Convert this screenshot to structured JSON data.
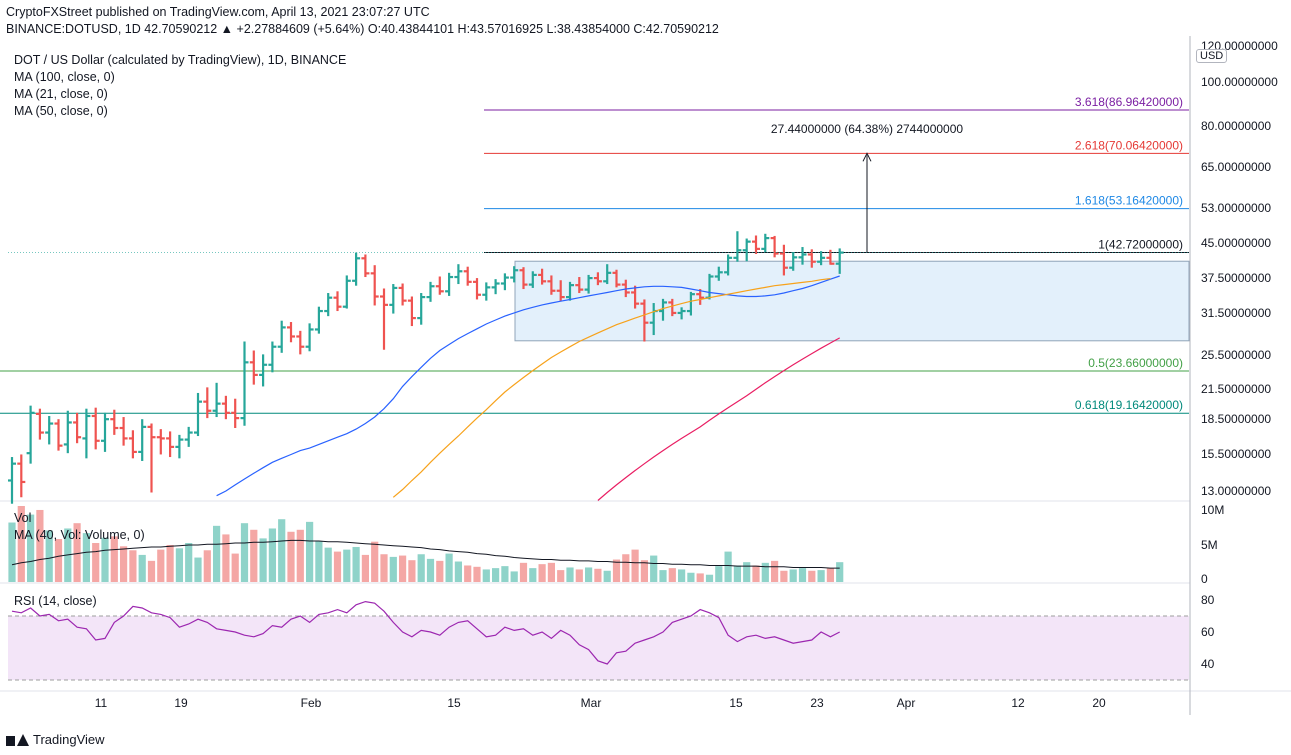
{
  "header": {
    "line1": "CryptoFXStreet published on TradingView.com, April 13, 2021 23:07:27 UTC",
    "line2": "BINANCE:DOTUSD, 1D  42.70590212  ▲ +2.27884609 (+5.64%) O:40.43844101 H:43.57016925 L:38.43854000 C:42.70590212"
  },
  "legend": {
    "title": "DOT / US Dollar (calculated by TradingView), 1D, BINANCE",
    "ma100": "MA (100, close, 0)",
    "ma21": "MA (21, close, 0)",
    "ma50": "MA (50, close, 0)",
    "vol": "Vol",
    "vol_ma": "MA (40, Vol: Volume, 0)",
    "rsi": "RSI (14, close)"
  },
  "currency_badge": "USD",
  "footer": {
    "brand": "TradingView"
  },
  "colors": {
    "up": "#26a69a",
    "down": "#ef5350",
    "ma21": "#2962ff",
    "ma50": "#f7a21b",
    "ma100": "#e91e63",
    "rsi": "#9c27b0",
    "band": "#e3f0fb"
  },
  "chart_data": {
    "type": "ohlc",
    "price_axis": {
      "scale": "log",
      "ticks": [
        "120.00000000",
        "100.00000000",
        "80.00000000",
        "65.00000000",
        "53.00000000",
        "45.00000000",
        "37.50000000",
        "31.50000000",
        "25.50000000",
        "21.50000000",
        "18.50000000",
        "15.50000000",
        "13.00000000"
      ]
    },
    "volume_axis": {
      "ticks": [
        "10M",
        "5M",
        "0"
      ]
    },
    "rsi_axis": {
      "ticks": [
        "80",
        "60",
        "40"
      ],
      "bands": [
        70,
        30
      ]
    },
    "time_axis": {
      "ticks": [
        "11",
        "19",
        "Feb",
        "15",
        "Mar",
        "15",
        "23",
        "Apr",
        "12",
        "20"
      ]
    },
    "levels": [
      {
        "label": "3.618(86.96420000)",
        "value": 86.9642,
        "color": "#7b1fa2"
      },
      {
        "label": "2.618(70.06420000)",
        "value": 70.0642,
        "color": "#e53935"
      },
      {
        "label": "1.618(53.16420000)",
        "value": 53.1642,
        "color": "#1e88e5"
      },
      {
        "label": "1(42.72000000)",
        "value": 42.72,
        "color": "#131722"
      },
      {
        "label": "0.5(23.66000000)",
        "value": 23.66,
        "color": "#43a047"
      },
      {
        "label": "0.618(19.16420000)",
        "value": 19.1642,
        "color": "#00897b"
      }
    ],
    "measure_label": "27.44000000 (64.38%) 2744000000",
    "range_box": {
      "top": 40.9,
      "bottom": 27.5
    },
    "bars": [
      {
        "o": 13.7,
        "h": 15.4,
        "l": 12.2,
        "c": 14.9
      },
      {
        "o": 14.9,
        "h": 15.6,
        "l": 12.6,
        "c": 13.6
      },
      {
        "o": 15.7,
        "h": 19.9,
        "l": 14.9,
        "c": 19.2
      },
      {
        "o": 19.1,
        "h": 19.6,
        "l": 16.8,
        "c": 17.4
      },
      {
        "o": 17.4,
        "h": 18.9,
        "l": 16.4,
        "c": 18.2
      },
      {
        "o": 18.2,
        "h": 18.6,
        "l": 15.9,
        "c": 16.3
      },
      {
        "o": 16.4,
        "h": 19.4,
        "l": 15.7,
        "c": 18.3
      },
      {
        "o": 18.3,
        "h": 19.2,
        "l": 16.5,
        "c": 17.0
      },
      {
        "o": 16.9,
        "h": 19.6,
        "l": 15.3,
        "c": 18.9
      },
      {
        "o": 18.9,
        "h": 19.7,
        "l": 16.0,
        "c": 16.7
      },
      {
        "o": 16.7,
        "h": 19.2,
        "l": 15.8,
        "c": 18.6
      },
      {
        "o": 18.6,
        "h": 19.5,
        "l": 17.2,
        "c": 17.8
      },
      {
        "o": 17.8,
        "h": 18.8,
        "l": 16.3,
        "c": 16.9
      },
      {
        "o": 16.9,
        "h": 17.6,
        "l": 15.3,
        "c": 15.8
      },
      {
        "o": 15.8,
        "h": 18.6,
        "l": 15.1,
        "c": 17.9
      },
      {
        "o": 17.9,
        "h": 18.2,
        "l": 12.9,
        "c": 17.0
      },
      {
        "o": 17.0,
        "h": 17.7,
        "l": 15.6,
        "c": 16.9
      },
      {
        "o": 16.9,
        "h": 17.5,
        "l": 15.4,
        "c": 16.2
      },
      {
        "o": 16.2,
        "h": 17.2,
        "l": 15.3,
        "c": 16.8
      },
      {
        "o": 16.8,
        "h": 17.9,
        "l": 16.2,
        "c": 17.4
      },
      {
        "o": 17.4,
        "h": 21.2,
        "l": 17.1,
        "c": 20.3
      },
      {
        "o": 20.3,
        "h": 21.8,
        "l": 18.7,
        "c": 19.4
      },
      {
        "o": 19.4,
        "h": 22.3,
        "l": 18.8,
        "c": 20.1
      },
      {
        "o": 20.1,
        "h": 20.9,
        "l": 18.6,
        "c": 19.2
      },
      {
        "o": 19.2,
        "h": 20.6,
        "l": 17.8,
        "c": 18.7
      },
      {
        "o": 18.7,
        "h": 27.4,
        "l": 18.0,
        "c": 24.7
      },
      {
        "o": 24.7,
        "h": 26.2,
        "l": 22.1,
        "c": 23.2
      },
      {
        "o": 23.2,
        "h": 25.7,
        "l": 21.9,
        "c": 24.4
      },
      {
        "o": 24.4,
        "h": 27.4,
        "l": 23.5,
        "c": 26.7
      },
      {
        "o": 26.7,
        "h": 30.4,
        "l": 25.9,
        "c": 29.4
      },
      {
        "o": 29.4,
        "h": 30.2,
        "l": 27.3,
        "c": 28.1
      },
      {
        "o": 28.1,
        "h": 28.9,
        "l": 25.7,
        "c": 26.7
      },
      {
        "o": 26.7,
        "h": 30.0,
        "l": 26.1,
        "c": 29.1
      },
      {
        "o": 29.1,
        "h": 32.6,
        "l": 28.5,
        "c": 31.9
      },
      {
        "o": 31.9,
        "h": 34.9,
        "l": 31.1,
        "c": 34.1
      },
      {
        "o": 34.1,
        "h": 35.2,
        "l": 31.9,
        "c": 32.6
      },
      {
        "o": 32.6,
        "h": 38.1,
        "l": 32.3,
        "c": 37.1
      },
      {
        "o": 37.1,
        "h": 42.7,
        "l": 36.2,
        "c": 41.5
      },
      {
        "o": 41.5,
        "h": 42.3,
        "l": 37.8,
        "c": 38.5
      },
      {
        "o": 38.5,
        "h": 40.1,
        "l": 32.8,
        "c": 34.3
      },
      {
        "o": 34.3,
        "h": 35.7,
        "l": 26.3,
        "c": 32.9
      },
      {
        "o": 32.9,
        "h": 36.5,
        "l": 31.5,
        "c": 35.8
      },
      {
        "o": 35.8,
        "h": 36.6,
        "l": 32.8,
        "c": 33.6
      },
      {
        "o": 33.6,
        "h": 34.3,
        "l": 29.6,
        "c": 30.8
      },
      {
        "o": 30.8,
        "h": 34.9,
        "l": 29.8,
        "c": 34.2
      },
      {
        "o": 34.2,
        "h": 36.9,
        "l": 33.4,
        "c": 36.1
      },
      {
        "o": 36.1,
        "h": 37.9,
        "l": 34.6,
        "c": 35.2
      },
      {
        "o": 35.2,
        "h": 38.6,
        "l": 34.4,
        "c": 37.8
      },
      {
        "o": 37.8,
        "h": 40.3,
        "l": 36.5,
        "c": 38.9
      },
      {
        "o": 38.9,
        "h": 39.8,
        "l": 36.2,
        "c": 36.9
      },
      {
        "o": 36.9,
        "h": 37.6,
        "l": 33.8,
        "c": 34.6
      },
      {
        "o": 34.6,
        "h": 36.8,
        "l": 33.6,
        "c": 35.9
      },
      {
        "o": 35.9,
        "h": 37.4,
        "l": 34.7,
        "c": 36.6
      },
      {
        "o": 36.6,
        "h": 38.5,
        "l": 35.4,
        "c": 37.7
      },
      {
        "o": 37.7,
        "h": 39.9,
        "l": 36.8,
        "c": 39.1
      },
      {
        "o": 39.1,
        "h": 39.7,
        "l": 35.6,
        "c": 36.4
      },
      {
        "o": 36.4,
        "h": 38.9,
        "l": 35.8,
        "c": 38.2
      },
      {
        "o": 38.2,
        "h": 39.4,
        "l": 36.4,
        "c": 37.0
      },
      {
        "o": 37.0,
        "h": 38.1,
        "l": 34.6,
        "c": 35.3
      },
      {
        "o": 35.3,
        "h": 37.2,
        "l": 33.5,
        "c": 34.2
      },
      {
        "o": 34.2,
        "h": 36.9,
        "l": 33.6,
        "c": 36.3
      },
      {
        "o": 36.3,
        "h": 37.8,
        "l": 34.9,
        "c": 35.5
      },
      {
        "o": 35.5,
        "h": 38.2,
        "l": 34.8,
        "c": 37.6
      },
      {
        "o": 37.6,
        "h": 38.7,
        "l": 36.3,
        "c": 37.0
      },
      {
        "o": 37.0,
        "h": 40.3,
        "l": 36.5,
        "c": 38.6
      },
      {
        "o": 38.6,
        "h": 39.2,
        "l": 35.9,
        "c": 36.4
      },
      {
        "o": 36.4,
        "h": 37.3,
        "l": 34.2,
        "c": 35.0
      },
      {
        "o": 35.0,
        "h": 36.2,
        "l": 32.3,
        "c": 33.1
      },
      {
        "o": 33.1,
        "h": 33.8,
        "l": 27.4,
        "c": 30.1
      },
      {
        "o": 30.1,
        "h": 33.2,
        "l": 28.3,
        "c": 31.9
      },
      {
        "o": 31.9,
        "h": 33.9,
        "l": 30.4,
        "c": 33.3
      },
      {
        "o": 33.3,
        "h": 33.9,
        "l": 31.1,
        "c": 31.6
      },
      {
        "o": 31.6,
        "h": 32.5,
        "l": 30.6,
        "c": 31.9
      },
      {
        "o": 31.9,
        "h": 35.1,
        "l": 31.2,
        "c": 34.7
      },
      {
        "o": 34.7,
        "h": 35.6,
        "l": 32.9,
        "c": 34.1
      },
      {
        "o": 34.1,
        "h": 38.4,
        "l": 33.8,
        "c": 37.9
      },
      {
        "o": 37.9,
        "h": 39.8,
        "l": 37.1,
        "c": 38.7
      },
      {
        "o": 38.7,
        "h": 42.3,
        "l": 38.1,
        "c": 41.6
      },
      {
        "o": 41.6,
        "h": 47.5,
        "l": 40.8,
        "c": 43.2
      },
      {
        "o": 43.2,
        "h": 45.8,
        "l": 40.9,
        "c": 45.1
      },
      {
        "o": 45.1,
        "h": 46.5,
        "l": 42.4,
        "c": 43.5
      },
      {
        "o": 43.5,
        "h": 46.9,
        "l": 42.8,
        "c": 45.9
      },
      {
        "o": 45.9,
        "h": 46.4,
        "l": 41.7,
        "c": 42.5
      },
      {
        "o": 42.5,
        "h": 44.4,
        "l": 38.1,
        "c": 39.6
      },
      {
        "o": 39.6,
        "h": 42.8,
        "l": 39.0,
        "c": 41.7
      },
      {
        "o": 41.7,
        "h": 43.9,
        "l": 40.2,
        "c": 42.3
      },
      {
        "o": 42.3,
        "h": 43.4,
        "l": 39.6,
        "c": 40.8
      },
      {
        "o": 40.8,
        "h": 43.0,
        "l": 40.1,
        "c": 41.6
      },
      {
        "o": 41.6,
        "h": 43.3,
        "l": 40.2,
        "c": 40.4
      },
      {
        "o": 40.4,
        "h": 43.6,
        "l": 38.4,
        "c": 42.7
      }
    ],
    "ma21": [
      12.7,
      13.0,
      13.4,
      13.8,
      14.2,
      14.6,
      15.0,
      15.3,
      15.6,
      15.9,
      16.1,
      16.4,
      16.7,
      17.0,
      17.3,
      17.7,
      18.2,
      18.8,
      19.6,
      20.6,
      21.9,
      23.0,
      24.1,
      25.2,
      26.2,
      27.0,
      27.8,
      28.5,
      29.2,
      29.9,
      30.5,
      31.1,
      31.6,
      32.1,
      32.5,
      32.9,
      33.2,
      33.5,
      33.8,
      34.1,
      34.4,
      34.7,
      35.0,
      35.3,
      35.6,
      35.8,
      36.0,
      36.1,
      36.1,
      36.0,
      35.9,
      35.6,
      35.3,
      35.0,
      34.8,
      34.6,
      34.4,
      34.3,
      34.3,
      34.4,
      34.6,
      34.9,
      35.3,
      35.7,
      36.2,
      36.8,
      37.4,
      38.0
    ],
    "ma21_start": 22,
    "ma50": [
      12.6,
      13.1,
      13.7,
      14.3,
      15.0,
      15.7,
      16.4,
      17.1,
      17.9,
      18.7,
      19.5,
      20.4,
      21.3,
      22.1,
      22.9,
      23.7,
      24.5,
      25.3,
      26.0,
      26.7,
      27.4,
      28.0,
      28.6,
      29.2,
      29.8,
      30.3,
      30.8,
      31.3,
      31.8,
      32.3,
      32.7,
      33.1,
      33.5,
      33.8,
      34.1,
      34.4,
      34.7,
      35.0,
      35.3,
      35.6,
      35.9,
      36.2,
      36.4,
      36.6,
      36.8,
      37.0,
      37.3,
      37.5
    ],
    "ma50_start": 41,
    "ma100": [
      12.4,
      12.9,
      13.4,
      13.9,
      14.4,
      14.9,
      15.4,
      15.9,
      16.4,
      16.9,
      17.4,
      17.9,
      18.5,
      19.1,
      19.7,
      20.3,
      20.9,
      21.6,
      22.3,
      23.0,
      23.7,
      24.4,
      25.1,
      25.8,
      26.5,
      27.2,
      27.9
    ],
    "ma100_start": 63,
    "volume": [
      9.0,
      11.5,
      10.2,
      10.9,
      7.8,
      6.5,
      8.1,
      8.9,
      7.4,
      5.9,
      6.7,
      6.9,
      5.4,
      4.8,
      4.1,
      3.2,
      4.9,
      5.6,
      5.1,
      5.9,
      3.7,
      4.8,
      8.5,
      7.2,
      4.3,
      8.9,
      7.9,
      6.6,
      8.1,
      9.5,
      7.6,
      7.9,
      9.1,
      6.2,
      5.2,
      4.6,
      4.9,
      5.3,
      4.1,
      6.1,
      4.2,
      3.8,
      4.0,
      3.3,
      4.2,
      3.5,
      3.2,
      4.3,
      3.1,
      2.5,
      2.3,
      1.9,
      2.1,
      2.4,
      1.6,
      2.9,
      2.1,
      2.7,
      2.9,
      1.8,
      2.2,
      1.9,
      2.2,
      2.0,
      1.7,
      3.4,
      4.2,
      4.9,
      3.3,
      4.0,
      1.8,
      2.1,
      1.9,
      1.4,
      1.3,
      1.1,
      2.4,
      4.6,
      2.5,
      3.0,
      2.5,
      2.9,
      3.2,
      1.7,
      1.9,
      2.1,
      1.7,
      1.8,
      2.1,
      3.0
    ],
    "vol_ma": [
      2.6,
      2.9,
      3.1,
      3.4,
      3.6,
      3.9,
      4.1,
      4.3,
      4.5,
      4.6,
      4.8,
      4.9,
      5.0,
      5.1,
      5.2,
      5.3,
      5.3,
      5.4,
      5.5,
      5.6,
      5.6,
      5.7,
      5.7,
      5.8,
      5.9,
      5.9,
      6.0,
      6.0,
      6.1,
      6.2,
      6.3,
      6.3,
      6.2,
      6.2,
      6.1,
      6.1,
      6.0,
      5.9,
      5.8,
      5.7,
      5.6,
      5.5,
      5.4,
      5.3,
      5.2,
      5.0,
      4.9,
      4.7,
      4.6,
      4.5,
      4.3,
      4.2,
      4.0,
      3.9,
      3.7,
      3.6,
      3.5,
      3.4,
      3.4,
      3.3,
      3.3,
      3.2,
      3.2,
      3.1,
      3.1,
      3.0,
      3.0,
      2.9,
      2.9,
      2.8,
      2.8,
      2.7,
      2.7,
      2.6,
      2.6,
      2.5,
      2.5,
      2.5,
      2.4,
      2.4,
      2.4,
      2.3,
      2.3,
      2.3,
      2.2,
      2.2,
      2.2,
      2.2,
      2.1,
      2.1
    ],
    "rsi": [
      73,
      72,
      75,
      70,
      71,
      67,
      68,
      63,
      62,
      55,
      56,
      66,
      70,
      76,
      75,
      72,
      71,
      69,
      63,
      65,
      68,
      66,
      62,
      61,
      60,
      58,
      57,
      59,
      64,
      63,
      68,
      70,
      66,
      71,
      72,
      74,
      72,
      77,
      79,
      78,
      73,
      66,
      60,
      57,
      61,
      60,
      58,
      63,
      66,
      67,
      62,
      57,
      58,
      63,
      61,
      62,
      58,
      60,
      56,
      61,
      58,
      52,
      49,
      42,
      40,
      47,
      48,
      53,
      55,
      57,
      60,
      66,
      68,
      70,
      74,
      72,
      69,
      58,
      54,
      57,
      58,
      56,
      57,
      55,
      53,
      54,
      55,
      60,
      57,
      60
    ]
  }
}
